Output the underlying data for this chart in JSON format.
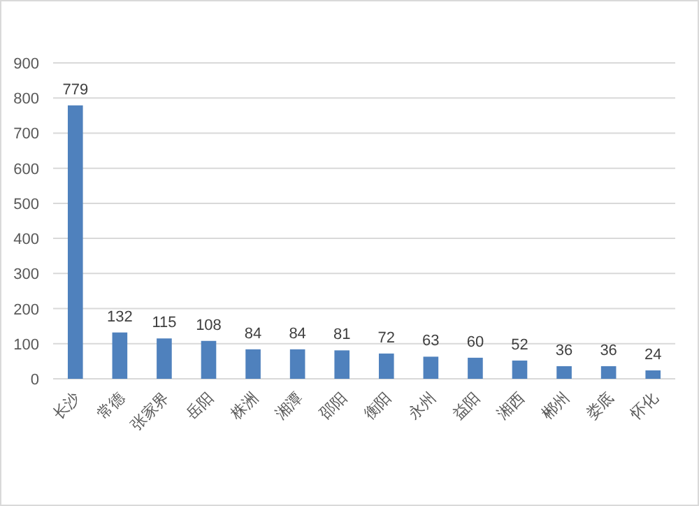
{
  "chart_data": {
    "type": "bar",
    "categories": [
      "长沙",
      "常德",
      "张家界",
      "岳阳",
      "株洲",
      "湘潭",
      "邵阳",
      "衡阳",
      "永州",
      "益阳",
      "湘西",
      "郴州",
      "娄底",
      "怀化"
    ],
    "values": [
      779,
      132,
      115,
      108,
      84,
      84,
      81,
      72,
      63,
      60,
      52,
      36,
      36,
      24
    ],
    "color": "#4f81bd",
    "ylim": [
      0,
      900
    ],
    "yticks": [
      0,
      100,
      200,
      300,
      400,
      500,
      600,
      700,
      800,
      900
    ],
    "grid": "y",
    "data_labels": true
  }
}
